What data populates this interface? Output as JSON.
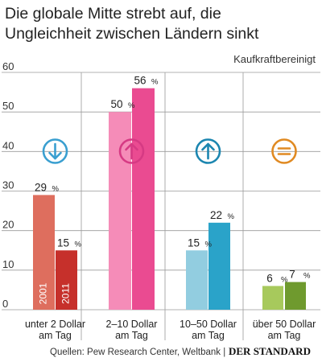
{
  "chart_data": {
    "type": "bar",
    "title_line1": "Die globale Mitte strebt auf, die",
    "title_line2": "Ungleichheit zwischen Ländern sinkt",
    "subtitle": "Kaufkraftbereinigt",
    "ylim": [
      0,
      60
    ],
    "yticks": [
      "0",
      "10",
      "20",
      "30",
      "40",
      "50",
      "60"
    ],
    "grid": true,
    "groups": [
      {
        "label_line1": "unter 2 Dollar",
        "label_line2": "am Tag",
        "trend": "down",
        "trend_color": "#3a9fd0",
        "bars": [
          {
            "year": "2001",
            "value": 29,
            "label": "29",
            "color": "#de6e5e"
          },
          {
            "year": "2011",
            "value": 15,
            "label": "15",
            "color": "#c6302b"
          }
        ]
      },
      {
        "label_line1": "2–10 Dollar",
        "label_line2": "am Tag",
        "trend": "up",
        "trend_color": "#d63a84",
        "bars": [
          {
            "value": 50,
            "label": "50",
            "color": "#f58cb8"
          },
          {
            "value": 56,
            "label": "56",
            "color": "#ea4b91"
          }
        ]
      },
      {
        "label_line1": "10–50 Dollar",
        "label_line2": "am Tag",
        "trend": "up",
        "trend_color": "#1c86b0",
        "bars": [
          {
            "value": 15,
            "label": "15",
            "color": "#92cde0"
          },
          {
            "value": 22,
            "label": "22",
            "color": "#2aa3c9"
          }
        ]
      },
      {
        "label_line1": "über 50 Dollar",
        "label_line2": "am Tag",
        "trend": "equal",
        "trend_color": "#e08a22",
        "bars": [
          {
            "value": 6,
            "label": "6",
            "color": "#a7c95c"
          },
          {
            "value": 7,
            "label": "7",
            "color": "#6f9a2e"
          }
        ]
      }
    ],
    "percent_sign": "%"
  },
  "footer": {
    "sources": "Quellen: Pew Research Center, Weltbank |",
    "brand": "DER STANDARD"
  }
}
